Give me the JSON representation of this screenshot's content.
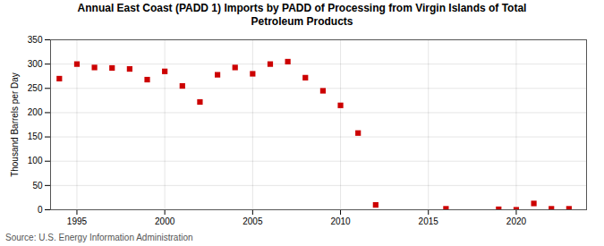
{
  "chart_data": {
    "type": "scatter",
    "title": "Annual East Coast (PADD 1) Imports by PADD of Processing from Virgin Islands of Total\nPetroleum Products",
    "ylabel": "Thousand Barrels per Day",
    "source": "Source: U.S. Energy Information Administration",
    "color": "#cc0000",
    "marker": "square",
    "grid": true,
    "xlim": [
      1993.5,
      2024
    ],
    "ylim": [
      0,
      350
    ],
    "xticks": [
      1995,
      2000,
      2005,
      2010,
      2015,
      2020
    ],
    "yticks": [
      0,
      50,
      100,
      150,
      200,
      250,
      300,
      350
    ],
    "x": [
      1994,
      1995,
      1996,
      1997,
      1998,
      1999,
      2000,
      2001,
      2002,
      2003,
      2004,
      2005,
      2006,
      2007,
      2008,
      2009,
      2010,
      2011,
      2012,
      2016,
      2019,
      2020,
      2021,
      2022,
      2023
    ],
    "values": [
      270,
      300,
      293,
      292,
      290,
      268,
      285,
      255,
      222,
      278,
      293,
      280,
      300,
      305,
      272,
      245,
      215,
      158,
      10,
      2,
      1,
      0,
      13,
      2,
      2
    ]
  }
}
